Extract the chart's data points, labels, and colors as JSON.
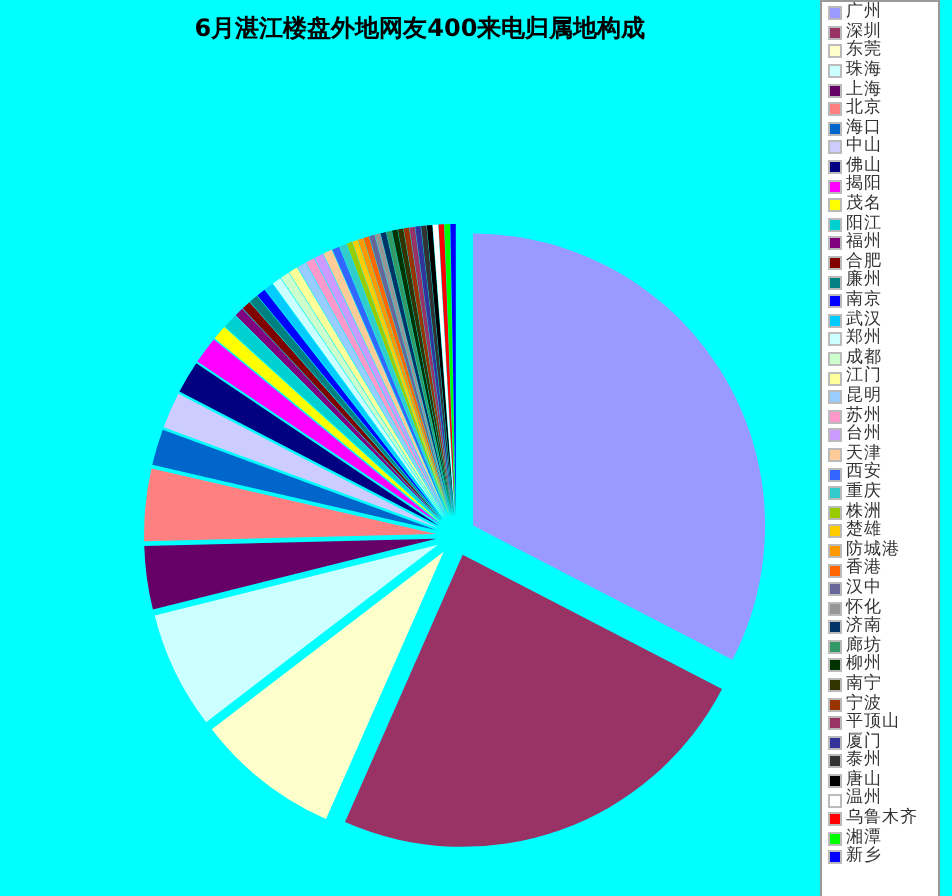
{
  "chart_data": {
    "type": "pie",
    "title": "6月湛江楼盘外地网友400来电归属地构成",
    "legend": "right",
    "categories": [
      "广州",
      "深圳",
      "东莞",
      "珠海",
      "上海",
      "北京",
      "海口",
      "中山",
      "佛山",
      "揭阳",
      "茂名",
      "阳江",
      "福州",
      "合肥",
      "廉州",
      "南京",
      "武汉",
      "郑州",
      "成都",
      "江门",
      "昆明",
      "苏州",
      "台州",
      "天津",
      "西安",
      "重庆",
      "株洲",
      "楚雄",
      "防城港",
      "香港",
      "汉中",
      "怀化",
      "济南",
      "廊坊",
      "柳州",
      "南宁",
      "宁波",
      "平顶山",
      "厦门",
      "泰州",
      "唐山",
      "温州",
      "乌鲁木齐",
      "湘潭",
      "新乡"
    ],
    "values": [
      32.6,
      24,
      8,
      6.5,
      3.5,
      4,
      2,
      2,
      1.8,
      1.5,
      0.8,
      0.8,
      0.5,
      0.5,
      0.5,
      0.5,
      0.5,
      0.5,
      0.5,
      0.5,
      0.5,
      0.5,
      0.5,
      0.5,
      0.4,
      0.4,
      0.3,
      0.3,
      0.3,
      0.3,
      0.3,
      0.3,
      0.3,
      0.3,
      0.3,
      0.3,
      0.3,
      0.3,
      0.3,
      0.3,
      0.3,
      0.3,
      0.3,
      0.3,
      0.3
    ],
    "colors": [
      "#9999ff",
      "#993366",
      "#ffffcc",
      "#ccffff",
      "#660066",
      "#ff8080",
      "#0066cc",
      "#ccccff",
      "#000080",
      "#ff00ff",
      "#ffff00",
      "#00d0d0",
      "#800080",
      "#800000",
      "#008080",
      "#0000ff",
      "#00ccff",
      "#ccffff",
      "#ccffcc",
      "#ffff99",
      "#99ccff",
      "#ff99cc",
      "#cc99ff",
      "#ffcc99",
      "#3366ff",
      "#33cccc",
      "#99cc00",
      "#ffcc00",
      "#ff9900",
      "#ff6600",
      "#666699",
      "#969696",
      "#003366",
      "#339966",
      "#003300",
      "#333300",
      "#993300",
      "#993366",
      "#333399",
      "#333333",
      "#000000",
      "#ffffff",
      "#ff0000",
      "#00ff00",
      "#0000ff"
    ]
  }
}
